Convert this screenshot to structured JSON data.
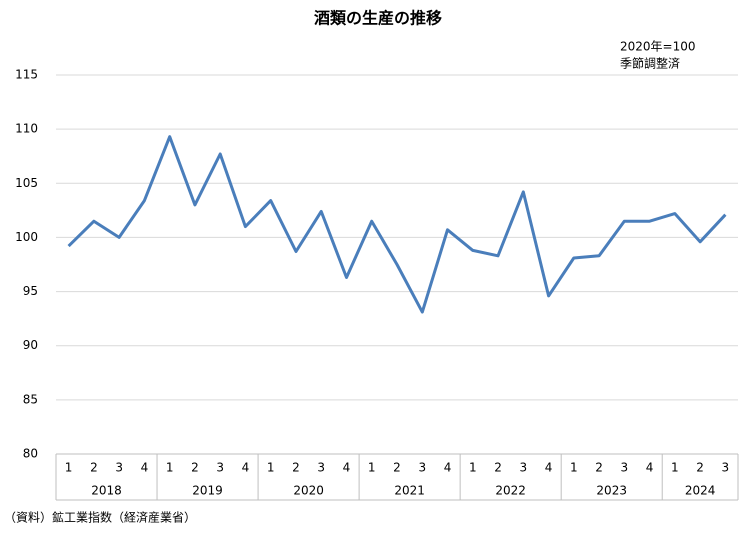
{
  "chart_data": {
    "type": "line",
    "title": "酒類の生産の推移",
    "annotation": [
      "2020年=100",
      "季節調整済"
    ],
    "source": "（資料）鉱工業指数（経済産業省）",
    "categories": [
      "1",
      "2",
      "3",
      "4",
      "1",
      "2",
      "3",
      "4",
      "1",
      "2",
      "3",
      "4",
      "1",
      "2",
      "3",
      "4",
      "1",
      "2",
      "3",
      "4",
      "1",
      "2",
      "3",
      "4",
      "1",
      "2",
      "3"
    ],
    "years": [
      "2018",
      "2019",
      "2020",
      "2021",
      "2022",
      "2023",
      "2024"
    ],
    "values": [
      99.2,
      101.5,
      100.0,
      103.4,
      109.3,
      103.0,
      107.7,
      101.0,
      103.4,
      98.7,
      102.4,
      96.3,
      101.5,
      97.5,
      93.1,
      100.7,
      98.8,
      98.3,
      104.2,
      94.6,
      98.1,
      98.3,
      101.5,
      101.5,
      102.2,
      99.6,
      102.1
    ],
    "color": "#4a7ebb",
    "ylim": [
      80,
      115
    ],
    "yticks": [
      80,
      85,
      90,
      95,
      100,
      105,
      110,
      115
    ],
    "grid": true
  }
}
